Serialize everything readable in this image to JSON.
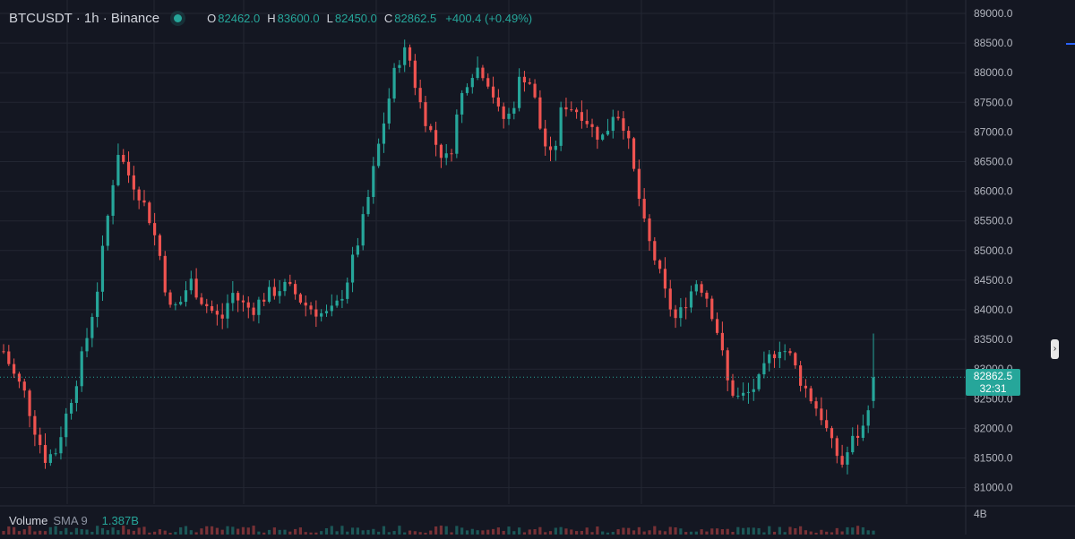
{
  "header": {
    "symbol": "BTCUSDT · 1h · Binance",
    "open_label": "O",
    "open": "82462.0",
    "high_label": "H",
    "high": "83600.0",
    "low_label": "L",
    "low": "82450.0",
    "close_label": "C",
    "close": "82862.5",
    "change": "+400.4 (+0.49%)"
  },
  "volume": {
    "label": "Volume",
    "sma": "SMA 9",
    "value": "1.387B",
    "axis_label": "4B"
  },
  "price_tag": {
    "price": "82862.5",
    "countdown": "32:31"
  },
  "axis": {
    "ticks": [
      "89000.0",
      "88500.0",
      "88000.0",
      "87500.0",
      "87000.0",
      "86500.0",
      "86000.0",
      "85500.0",
      "85000.0",
      "84500.0",
      "84000.0",
      "83500.0",
      "83000.0",
      "82500.0",
      "82000.0",
      "81500.0",
      "81000.0"
    ]
  },
  "colors": {
    "up": "#26a69a",
    "down": "#ef5350",
    "background": "#141722",
    "grid": "#232733"
  },
  "icons": {
    "status": "status-dot-icon",
    "scroll": "scroll-handle-icon"
  },
  "chart_data": {
    "type": "candlestick",
    "ylim": [
      80800,
      89100
    ],
    "current_price": 82862.5,
    "close_path": [
      83300,
      82900,
      82600,
      82000,
      81500,
      81600,
      82200,
      82800,
      83500,
      84300,
      85500,
      86700,
      86300,
      86000,
      85600,
      85000,
      84000,
      84100,
      84500,
      84200,
      84000,
      83800,
      84300,
      84100,
      84000,
      84200,
      84300,
      84400,
      84300,
      84100,
      84000,
      83900,
      84000,
      84400,
      85000,
      85700,
      86600,
      87400,
      88200,
      88400,
      87600,
      87100,
      86700,
      86500,
      87500,
      88000,
      88100,
      87800,
      87200,
      87300,
      88000,
      87800,
      86900,
      86500,
      87500,
      87400,
      87300,
      87000,
      86900,
      87400,
      87100,
      86200,
      85300,
      84800,
      84200,
      83800,
      84200,
      84500,
      84200,
      83600,
      82700,
      82500,
      82600,
      82800,
      83200,
      83400,
      83200,
      82800,
      82500,
      82200,
      81700,
      81400,
      81800,
      82000,
      82863
    ],
    "candle_count": 168
  }
}
